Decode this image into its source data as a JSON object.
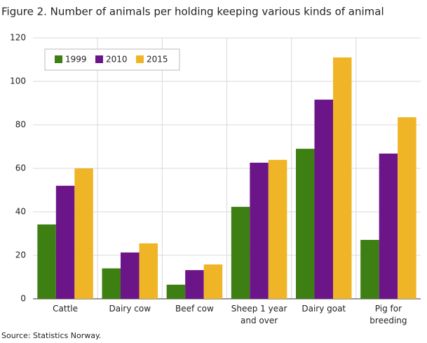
{
  "chart_data": {
    "type": "bar",
    "title": "Figure 2. Number of animals per holding keeping various kinds of animal",
    "source": "Source: Statistics Norway.",
    "categories": [
      "Cattle",
      "Dairy cow",
      "Beef cow",
      "Sheep 1 year and over",
      "Dairy goat",
      "Pig for breeding"
    ],
    "series": [
      {
        "name": "1999",
        "color": "#3d7f12",
        "values": [
          34.2,
          14,
          6.5,
          42.3,
          69,
          27.1
        ]
      },
      {
        "name": "2010",
        "color": "#6c1589",
        "values": [
          52,
          21.3,
          13.2,
          62.6,
          91.6,
          66.8
        ]
      },
      {
        "name": "2015",
        "color": "#efb526",
        "values": [
          60,
          25.5,
          15.8,
          63.9,
          111,
          83.5
        ]
      }
    ],
    "ylim": [
      0,
      120
    ],
    "yticks": [
      0,
      20,
      40,
      60,
      80,
      100,
      120
    ],
    "grid": true,
    "legend": "top-left"
  }
}
